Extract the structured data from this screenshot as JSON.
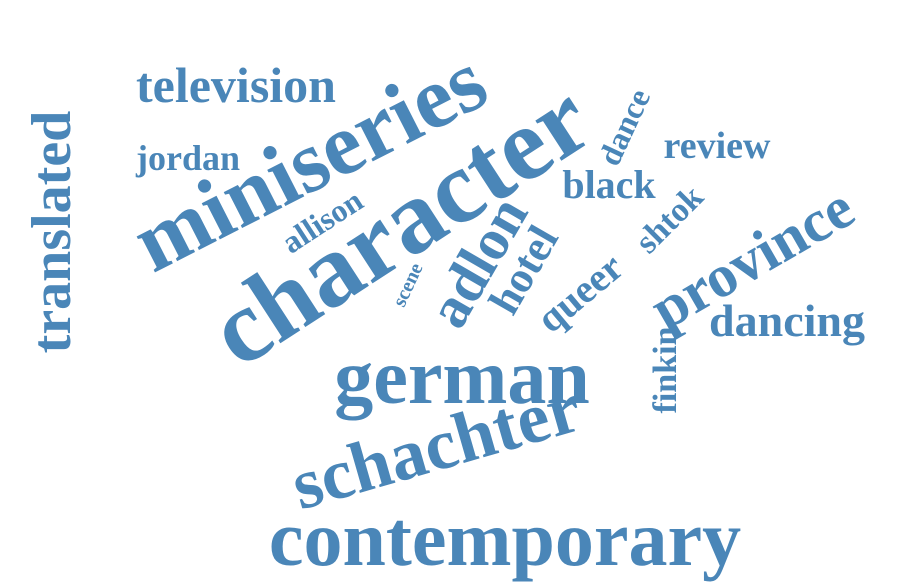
{
  "theme": {
    "word_color": "#4a86b8",
    "background": "#ffffff"
  },
  "words": [
    {
      "id": "contemporary",
      "text": "contemporary"
    },
    {
      "id": "character",
      "text": "character"
    },
    {
      "id": "miniseries",
      "text": "miniseries"
    },
    {
      "id": "german",
      "text": "german"
    },
    {
      "id": "schachter",
      "text": "schachter"
    },
    {
      "id": "translated",
      "text": "translated"
    },
    {
      "id": "television",
      "text": "television"
    },
    {
      "id": "province",
      "text": "province"
    },
    {
      "id": "adlon",
      "text": "adlon"
    },
    {
      "id": "hotel",
      "text": "hotel"
    },
    {
      "id": "queer",
      "text": "queer"
    },
    {
      "id": "dancing",
      "text": "dancing"
    },
    {
      "id": "black",
      "text": "black"
    },
    {
      "id": "review",
      "text": "review"
    },
    {
      "id": "jordan",
      "text": "jordan"
    },
    {
      "id": "allison",
      "text": "allison"
    },
    {
      "id": "dance",
      "text": "dance"
    },
    {
      "id": "shtok",
      "text": "shtok"
    },
    {
      "id": "finkin",
      "text": "finkin"
    },
    {
      "id": "scene",
      "text": "scene"
    }
  ]
}
